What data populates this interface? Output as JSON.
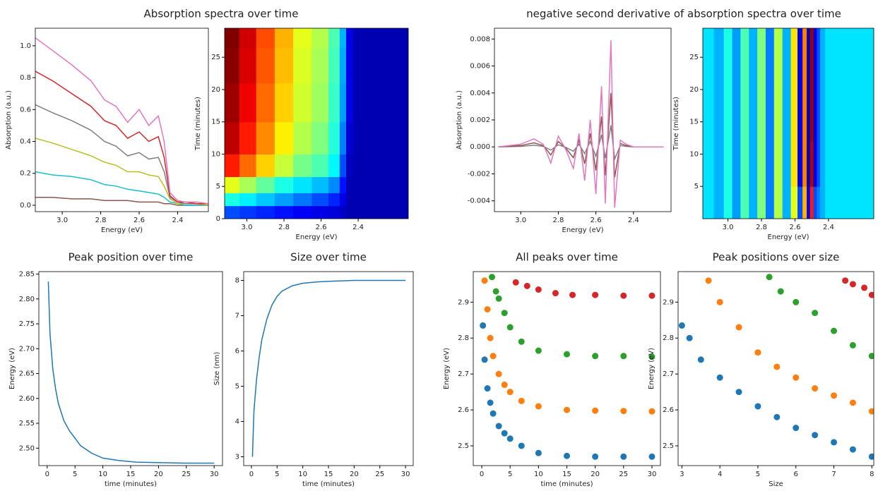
{
  "chart_data": [
    {
      "type": "line",
      "title": "Absorption spectra over time",
      "xlabel": "Energy (eV)",
      "ylabel": "Absorption (a.u.)",
      "x": [
        3.14,
        3.05,
        2.95,
        2.85,
        2.78,
        2.72,
        2.66,
        2.6,
        2.55,
        2.5,
        2.47,
        2.44,
        2.4,
        2.36,
        2.3,
        2.24
      ],
      "series": [
        {
          "color": "#8c564b",
          "values": [
            0.05,
            0.05,
            0.04,
            0.04,
            0.03,
            0.03,
            0.03,
            0.02,
            0.02,
            0.02,
            0.01,
            0.01,
            0.0,
            0.0,
            0.0,
            0.0
          ]
        },
        {
          "color": "#17becf",
          "values": [
            0.21,
            0.19,
            0.18,
            0.16,
            0.13,
            0.12,
            0.1,
            0.09,
            0.08,
            0.07,
            0.05,
            0.02,
            0.01,
            0.0,
            0.0,
            0.0
          ]
        },
        {
          "color": "#bcbd22",
          "values": [
            0.42,
            0.39,
            0.35,
            0.31,
            0.27,
            0.25,
            0.21,
            0.21,
            0.19,
            0.18,
            0.12,
            0.04,
            0.01,
            0.01,
            0.01,
            0.0
          ]
        },
        {
          "color": "#7f7f7f",
          "values": [
            0.63,
            0.58,
            0.53,
            0.47,
            0.4,
            0.37,
            0.31,
            0.33,
            0.29,
            0.3,
            0.21,
            0.05,
            0.02,
            0.01,
            0.01,
            0.01
          ]
        },
        {
          "color": "#d62728",
          "values": [
            0.84,
            0.78,
            0.7,
            0.62,
            0.53,
            0.5,
            0.42,
            0.46,
            0.4,
            0.43,
            0.3,
            0.06,
            0.02,
            0.02,
            0.01,
            0.01
          ]
        },
        {
          "color": "#e377c2",
          "values": [
            1.05,
            0.97,
            0.88,
            0.78,
            0.66,
            0.62,
            0.52,
            0.6,
            0.5,
            0.56,
            0.4,
            0.08,
            0.03,
            0.02,
            0.02,
            0.01
          ]
        }
      ],
      "xlim": [
        3.14,
        2.24
      ],
      "ylim": [
        -0.04,
        1.11
      ],
      "xticks": [
        {
          "value": 3,
          "label": "3.0"
        },
        2.8,
        2.6,
        2.4
      ],
      "yticks": [
        {
          "value": 0,
          "label": "0.0"
        },
        0.2,
        0.4,
        0.6,
        0.8,
        {
          "value": 1,
          "label": "1.0"
        }
      ]
    },
    {
      "type": "heatmap",
      "xlabel": "Energy (eV)",
      "ylabel": "Time (minutes)",
      "colormap": "jet",
      "zlim": [
        0,
        1
      ],
      "x": [
        3.08,
        3.0,
        2.9,
        2.8,
        2.7,
        2.6,
        2.52,
        2.48,
        2.45,
        2.4,
        2.3,
        2.2
      ],
      "y": [
        1,
        3,
        5,
        8,
        12,
        18,
        24,
        29
      ],
      "z": [
        [
          0.2,
          0.18,
          0.16,
          0.14,
          0.12,
          0.1,
          0.09,
          0.07,
          0.05,
          0.05,
          0.05,
          0.05
        ],
        [
          0.4,
          0.36,
          0.32,
          0.28,
          0.24,
          0.2,
          0.16,
          0.1,
          0.05,
          0.05,
          0.05,
          0.05
        ],
        [
          0.6,
          0.54,
          0.47,
          0.4,
          0.35,
          0.31,
          0.26,
          0.14,
          0.05,
          0.05,
          0.05,
          0.05
        ],
        [
          0.85,
          0.77,
          0.67,
          0.57,
          0.49,
          0.45,
          0.37,
          0.2,
          0.06,
          0.05,
          0.05,
          0.05
        ],
        [
          0.94,
          0.85,
          0.74,
          0.64,
          0.55,
          0.5,
          0.41,
          0.25,
          0.08,
          0.05,
          0.05,
          0.05
        ],
        [
          0.97,
          0.89,
          0.77,
          0.67,
          0.58,
          0.53,
          0.43,
          0.28,
          0.1,
          0.05,
          0.05,
          0.05
        ],
        [
          0.99,
          0.91,
          0.79,
          0.69,
          0.59,
          0.54,
          0.44,
          0.29,
          0.1,
          0.05,
          0.05,
          0.05
        ],
        [
          1.0,
          0.92,
          0.8,
          0.7,
          0.6,
          0.55,
          0.45,
          0.3,
          0.1,
          0.05,
          0.05,
          0.05
        ]
      ],
      "xlim": [
        3.12,
        2.13
      ],
      "ylim": [
        0,
        29.5
      ],
      "xticks": [
        {
          "value": 3,
          "label": "3.0"
        },
        2.8,
        2.6,
        2.4
      ],
      "yticks": [
        0,
        5,
        10,
        15,
        20,
        25
      ]
    },
    {
      "type": "line",
      "title": "negative second derivative of absorption spectra over time",
      "xlabel": "Energy (eV)",
      "ylabel": "Absorption (a.u.)",
      "x": [
        3.12,
        3.0,
        2.93,
        2.88,
        2.84,
        2.8,
        2.76,
        2.72,
        2.69,
        2.66,
        2.63,
        2.6,
        2.57,
        2.55,
        2.52,
        2.5,
        2.47,
        2.44,
        2.4,
        2.35,
        2.28,
        2.24
      ],
      "series": [
        {
          "color": "#7f7f7f",
          "values": [
            0,
            4e-05,
            0.00012,
            4e-05,
            -0.00024,
            0.00016,
            -4e-05,
            -0.00032,
            0.0002,
            -0.0005,
            0.0004,
            -0.0007,
            0.0009,
            -0.00084,
            0.0016,
            -0.0009,
            0.0001,
            4e-05,
            0,
            0,
            0,
            0
          ]
        },
        {
          "color": "#8c564b",
          "values": [
            0,
            0.0001,
            0.0003,
            0.0001,
            -0.0006,
            0.0004,
            -0.0001,
            -0.0008,
            0.0005,
            -0.00125,
            0.001,
            -0.00175,
            0.00225,
            -0.0021,
            0.004,
            -0.00225,
            0.00025,
            0.0001,
            0,
            0,
            0,
            0
          ]
        },
        {
          "color": "#e377c2",
          "values": [
            0,
            0.0002,
            0.0006,
            0.0002,
            -0.0012,
            0.0008,
            -0.0002,
            -0.0016,
            0.001,
            -0.0025,
            0.002,
            -0.0035,
            0.0045,
            -0.0042,
            0.0079,
            -0.0045,
            0.0005,
            0.0002,
            0,
            0,
            0,
            0
          ]
        }
      ],
      "xlim": [
        3.14,
        2.2
      ],
      "ylim": [
        -0.0048,
        0.0088
      ],
      "xticks": [
        {
          "value": 3,
          "label": "3.0"
        },
        2.8,
        2.6,
        2.4
      ],
      "yticks": [
        -0.004,
        -0.002,
        {
          "value": 0,
          "label": "0.000"
        },
        0.002,
        0.004,
        0.006,
        0.008
      ]
    },
    {
      "type": "heatmap",
      "xlabel": "Energy (eV)",
      "ylabel": "Time (minutes)",
      "colormap": "jet",
      "zlim": [
        0,
        1
      ],
      "x": [
        3.12,
        3.05,
        3.0,
        2.95,
        2.9,
        2.85,
        2.8,
        2.75,
        2.7,
        2.65,
        2.6,
        2.57,
        2.54,
        2.52,
        2.5,
        2.48,
        2.46,
        2.44,
        2.4,
        2.3,
        2.2
      ],
      "y": [
        2,
        8,
        16,
        26
      ],
      "z": [
        [
          0.35,
          0.3,
          0.4,
          0.28,
          0.45,
          0.3,
          0.5,
          0.25,
          0.55,
          0.3,
          0.6,
          0.2,
          0.7,
          0.1,
          0.85,
          0.2,
          0.25,
          0.3,
          0.35,
          0.35,
          0.35
        ],
        [
          0.35,
          0.3,
          0.4,
          0.28,
          0.45,
          0.3,
          0.5,
          0.25,
          0.55,
          0.3,
          0.65,
          0.1,
          0.75,
          0.05,
          0.95,
          0.1,
          0.2,
          0.3,
          0.35,
          0.35,
          0.35
        ],
        [
          0.35,
          0.3,
          0.4,
          0.28,
          0.45,
          0.3,
          0.5,
          0.25,
          0.55,
          0.3,
          0.65,
          0.1,
          0.75,
          0.05,
          0.97,
          0.1,
          0.2,
          0.3,
          0.35,
          0.35,
          0.35
        ],
        [
          0.35,
          0.3,
          0.4,
          0.28,
          0.45,
          0.3,
          0.5,
          0.25,
          0.55,
          0.3,
          0.65,
          0.1,
          0.75,
          0.05,
          0.97,
          0.1,
          0.2,
          0.3,
          0.35,
          0.35,
          0.35
        ]
      ],
      "xlim": [
        3.15,
        2.13
      ],
      "ylim": [
        0,
        29.5
      ],
      "xticks": [
        {
          "value": 3,
          "label": "3.0"
        },
        2.8,
        2.6,
        2.4
      ],
      "yticks": [
        5,
        10,
        15,
        20,
        25
      ]
    },
    {
      "type": "line",
      "title": "Peak position over time",
      "xlabel": "time (minutes)",
      "ylabel": "Energy (eV)",
      "x": [
        0.2,
        0.5,
        1,
        1.5,
        2,
        3,
        4,
        5,
        6,
        8,
        10,
        13,
        16,
        20,
        25,
        30
      ],
      "series": [
        {
          "color": "#1f77b4",
          "values": [
            2.835,
            2.73,
            2.66,
            2.62,
            2.59,
            2.555,
            2.535,
            2.52,
            2.505,
            2.49,
            2.48,
            2.475,
            2.472,
            2.471,
            2.47,
            2.47
          ]
        }
      ],
      "xlim": [
        -1.5,
        31.5
      ],
      "ylim": [
        2.465,
        2.855
      ],
      "xticks": [
        0,
        5,
        10,
        15,
        20,
        25,
        30
      ],
      "yticks": [
        {
          "value": 2.5,
          "label": "2.50"
        },
        2.55,
        {
          "value": 2.6,
          "label": "2.60"
        },
        2.65,
        {
          "value": 2.7,
          "label": "2.70"
        },
        2.75,
        {
          "value": 2.8,
          "label": "2.80"
        },
        2.85
      ]
    },
    {
      "type": "line",
      "title": "Size over time",
      "xlabel": "time (minutes)",
      "ylabel": "Size (nm)",
      "x": [
        0.2,
        0.5,
        1,
        1.5,
        2,
        3,
        4,
        5,
        6,
        8,
        10,
        13,
        16,
        20,
        25,
        30
      ],
      "series": [
        {
          "color": "#1f77b4",
          "values": [
            3.0,
            4.3,
            5.2,
            5.8,
            6.3,
            6.9,
            7.3,
            7.55,
            7.7,
            7.85,
            7.92,
            7.96,
            7.98,
            8.0,
            8.0,
            8.0
          ]
        }
      ],
      "xlim": [
        -1.5,
        31.5
      ],
      "ylim": [
        2.75,
        8.25
      ],
      "xticks": [
        0,
        5,
        10,
        15,
        20,
        25,
        30
      ],
      "yticks": [
        3,
        4,
        5,
        6,
        7,
        8
      ]
    },
    {
      "type": "scatter",
      "title": "All peaks over time",
      "xlabel": "time (minutes)",
      "ylabel": "Energy (eV)",
      "series": [
        {
          "color": "#1f77b4",
          "x": [
            0.2,
            0.5,
            1,
            1.5,
            2,
            3,
            4,
            5,
            7,
            10,
            15,
            20,
            25,
            30
          ],
          "values": [
            2.835,
            2.74,
            2.66,
            2.62,
            2.59,
            2.555,
            2.535,
            2.52,
            2.5,
            2.48,
            2.472,
            2.47,
            2.47,
            2.47
          ]
        },
        {
          "color": "#ff7f0e",
          "x": [
            0.5,
            1,
            1.5,
            2,
            3,
            4,
            5,
            7,
            10,
            15,
            20,
            25,
            30
          ],
          "values": [
            2.96,
            2.88,
            2.8,
            2.75,
            2.7,
            2.67,
            2.65,
            2.625,
            2.61,
            2.6,
            2.598,
            2.597,
            2.596
          ]
        },
        {
          "color": "#2ca02c",
          "x": [
            1.8,
            2.5,
            3,
            4,
            5,
            7,
            10,
            15,
            20,
            25,
            30
          ],
          "values": [
            2.97,
            2.93,
            2.91,
            2.87,
            2.83,
            2.79,
            2.765,
            2.755,
            2.75,
            2.75,
            2.748
          ]
        },
        {
          "color": "#d62728",
          "x": [
            6,
            8,
            10,
            13,
            16,
            20,
            25,
            30
          ],
          "values": [
            2.955,
            2.945,
            2.935,
            2.925,
            2.92,
            2.92,
            2.918,
            2.918
          ]
        }
      ],
      "xlim": [
        -1.5,
        31.5
      ],
      "ylim": [
        2.445,
        2.985
      ],
      "xticks": [
        0,
        5,
        10,
        15,
        20,
        25,
        30
      ],
      "yticks": [
        2.5,
        2.6,
        2.7,
        2.8,
        2.9
      ]
    },
    {
      "type": "scatter",
      "title": "Peak positions over size",
      "xlabel": "Size",
      "ylabel": "Energy (eV)",
      "series": [
        {
          "color": "#1f77b4",
          "x": [
            3,
            3.2,
            3.5,
            4,
            4.5,
            5,
            5.5,
            6,
            6.5,
            7,
            7.5,
            8
          ],
          "values": [
            2.835,
            2.8,
            2.74,
            2.69,
            2.65,
            2.61,
            2.58,
            2.55,
            2.53,
            2.51,
            2.49,
            2.47
          ]
        },
        {
          "color": "#ff7f0e",
          "x": [
            3.7,
            4,
            4.5,
            5,
            5.5,
            6,
            6.5,
            7,
            7.5,
            8
          ],
          "values": [
            2.96,
            2.9,
            2.83,
            2.76,
            2.72,
            2.69,
            2.66,
            2.64,
            2.62,
            2.596
          ]
        },
        {
          "color": "#2ca02c",
          "x": [
            5.3,
            5.6,
            6,
            6.5,
            7,
            7.5,
            8
          ],
          "values": [
            2.97,
            2.93,
            2.9,
            2.87,
            2.82,
            2.78,
            2.75
          ]
        },
        {
          "color": "#d62728",
          "x": [
            7.3,
            7.5,
            7.8,
            8
          ],
          "values": [
            2.96,
            2.95,
            2.94,
            2.92
          ]
        }
      ],
      "xlim": [
        2.9,
        8.05
      ],
      "ylim": [
        2.445,
        2.985
      ],
      "xticks": [
        3,
        4,
        5,
        6,
        7,
        8
      ],
      "yticks": [
        2.5,
        2.6,
        2.7,
        2.8,
        2.9
      ]
    }
  ]
}
